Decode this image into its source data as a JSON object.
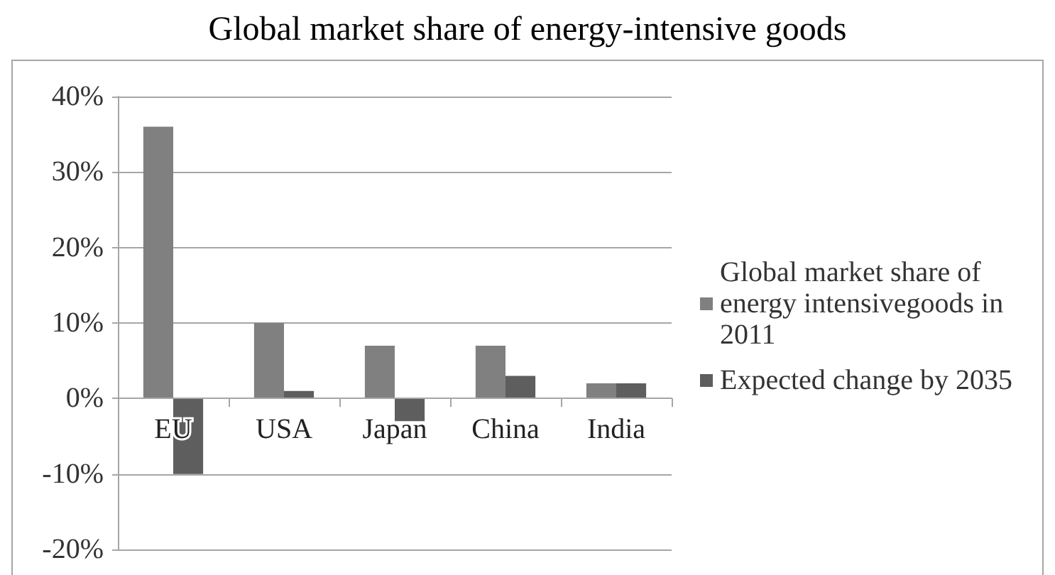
{
  "chart_data": {
    "type": "bar",
    "title": "Global market share of energy-intensive goods",
    "categories": [
      "EU",
      "USA",
      "Japan",
      "China",
      "India"
    ],
    "series": [
      {
        "name": "Global market share of energy intensivegoods in 2011",
        "color": "#808080",
        "values": [
          36,
          10,
          7,
          7,
          2
        ]
      },
      {
        "name": "Expected change by 2035",
        "color": "#5e5e5e",
        "values": [
          -10,
          1,
          -3,
          3,
          2
        ]
      }
    ],
    "ylim": [
      -20,
      40
    ],
    "yticks": [
      {
        "value": -20,
        "label": "-20%"
      },
      {
        "value": -10,
        "label": "-10%"
      },
      {
        "value": 0,
        "label": "0%"
      },
      {
        "value": 10,
        "label": "10%"
      },
      {
        "value": 20,
        "label": "20%"
      },
      {
        "value": 30,
        "label": "30%"
      },
      {
        "value": 40,
        "label": "40%"
      }
    ],
    "grid": "y",
    "legend": "right"
  }
}
